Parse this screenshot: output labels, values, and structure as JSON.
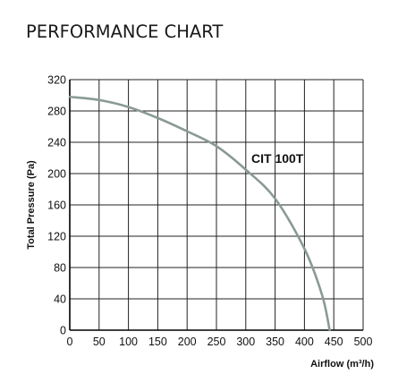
{
  "page": {
    "heading": "PERFORMANCE CHART"
  },
  "chart_data": {
    "type": "line",
    "title": "PERFORMANCE CHART",
    "xlabel": "Airflow (m³/h)",
    "ylabel": "Total Pressure (Pa)",
    "xlim": [
      0,
      500
    ],
    "ylim": [
      0,
      320
    ],
    "xticks": [
      "0",
      "50",
      "100",
      "150",
      "200",
      "250",
      "300",
      "350",
      "400",
      "450",
      "500"
    ],
    "yticks": [
      "0",
      "40",
      "80",
      "120",
      "160",
      "200",
      "240",
      "280",
      "320"
    ],
    "grid": true,
    "colors": {
      "curve": "#8a9a96",
      "grid": "#222222"
    },
    "series": [
      {
        "name": "CIT 100T",
        "x": [
          0,
          50,
          100,
          150,
          200,
          250,
          300,
          350,
          400,
          430,
          443
        ],
        "y": [
          298,
          294,
          285,
          271,
          254,
          235,
          205,
          168,
          104,
          45,
          0
        ]
      }
    ]
  }
}
